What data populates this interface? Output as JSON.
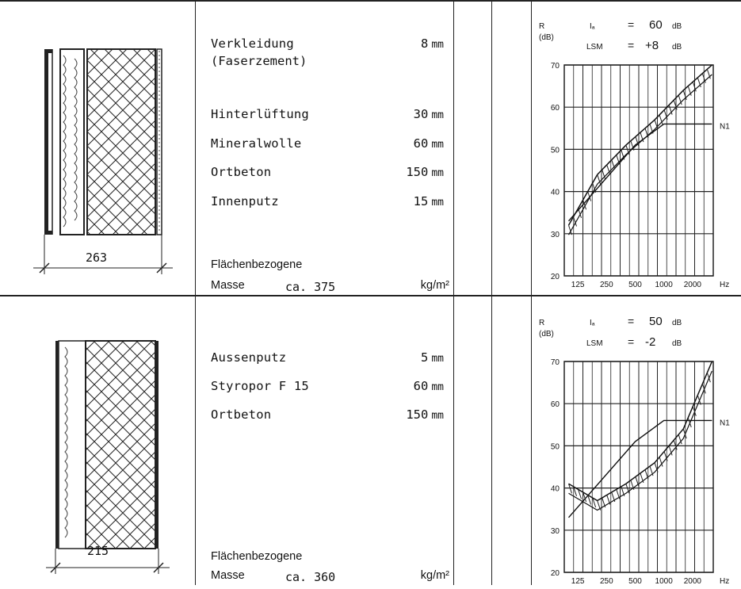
{
  "sections": [
    {
      "drawing": {
        "dimension": "263"
      },
      "layers": [
        {
          "name": "Verkleidung",
          "name2": "(Faserzement)",
          "thickness": "8",
          "unit": "mm"
        },
        {
          "name": "Hinterlüftung",
          "thickness": "30",
          "unit": "mm"
        },
        {
          "name": "Mineralwolle",
          "thickness": "60",
          "unit": "mm"
        },
        {
          "name": "Ortbeton",
          "thickness": "150",
          "unit": "mm"
        },
        {
          "name": "Innenputz",
          "thickness": "15",
          "unit": "mm"
        }
      ],
      "mass": {
        "label1": "Flächenbezogene",
        "label2": "Masse",
        "value": "ca. 375",
        "unit": "kg/m²"
      },
      "chart_data": {
        "type": "line",
        "y_axis_label": "R",
        "y_axis_unit": "(dB)",
        "x_axis_unit": "Hz",
        "ia_label": "Iₐ",
        "ia_value": "60",
        "ia_unit": "dB",
        "lsm_label": "LSM",
        "lsm_value": "+8",
        "lsm_unit": "dB",
        "n_label": "N1",
        "ylim": [
          20,
          70
        ],
        "yticks": [
          "70",
          "60",
          "50",
          "40",
          "30",
          "20"
        ],
        "xtick_labels": [
          "125",
          "250",
          "500",
          "1000",
          "2000"
        ],
        "series": [
          {
            "name": "N1",
            "x": [
              100,
              500,
              1000,
              3200
            ],
            "y": [
              33,
              51,
              56,
              56
            ]
          },
          {
            "x": [
              100,
              200,
              400,
              800,
              1600,
              3200
            ],
            "y": [
              32,
              44,
              51,
              57,
              64,
              70
            ]
          }
        ]
      }
    },
    {
      "drawing": {
        "dimension": "215"
      },
      "layers": [
        {
          "name": "Aussenputz",
          "thickness": "5",
          "unit": "mm"
        },
        {
          "name": "Styropor F 15",
          "thickness": "60",
          "unit": "mm"
        },
        {
          "name": "Ortbeton",
          "thickness": "150",
          "unit": "mm"
        }
      ],
      "mass": {
        "label1": "Flächenbezogene",
        "label2": "Masse",
        "value": "ca. 360",
        "unit": "kg/m²"
      },
      "chart_data": {
        "type": "line",
        "y_axis_label": "R",
        "y_axis_unit": "(dB)",
        "x_axis_unit": "Hz",
        "ia_label": "Iₐ",
        "ia_value": "50",
        "ia_unit": "dB",
        "lsm_label": "LSM",
        "lsm_value": "-2",
        "lsm_unit": "dB",
        "n_label": "N1",
        "ylim": [
          20,
          70
        ],
        "yticks": [
          "70",
          "60",
          "50",
          "40",
          "30",
          "20"
        ],
        "xtick_labels": [
          "125",
          "250",
          "500",
          "1000",
          "2000"
        ],
        "series": [
          {
            "name": "N1",
            "x": [
              100,
              500,
              1000,
              3200
            ],
            "y": [
              33,
              51,
              56,
              56
            ]
          },
          {
            "x": [
              100,
              200,
              400,
              800,
              1600,
              3200
            ],
            "y": [
              41,
              37,
              41,
              46,
              54,
              70
            ]
          }
        ]
      }
    }
  ]
}
